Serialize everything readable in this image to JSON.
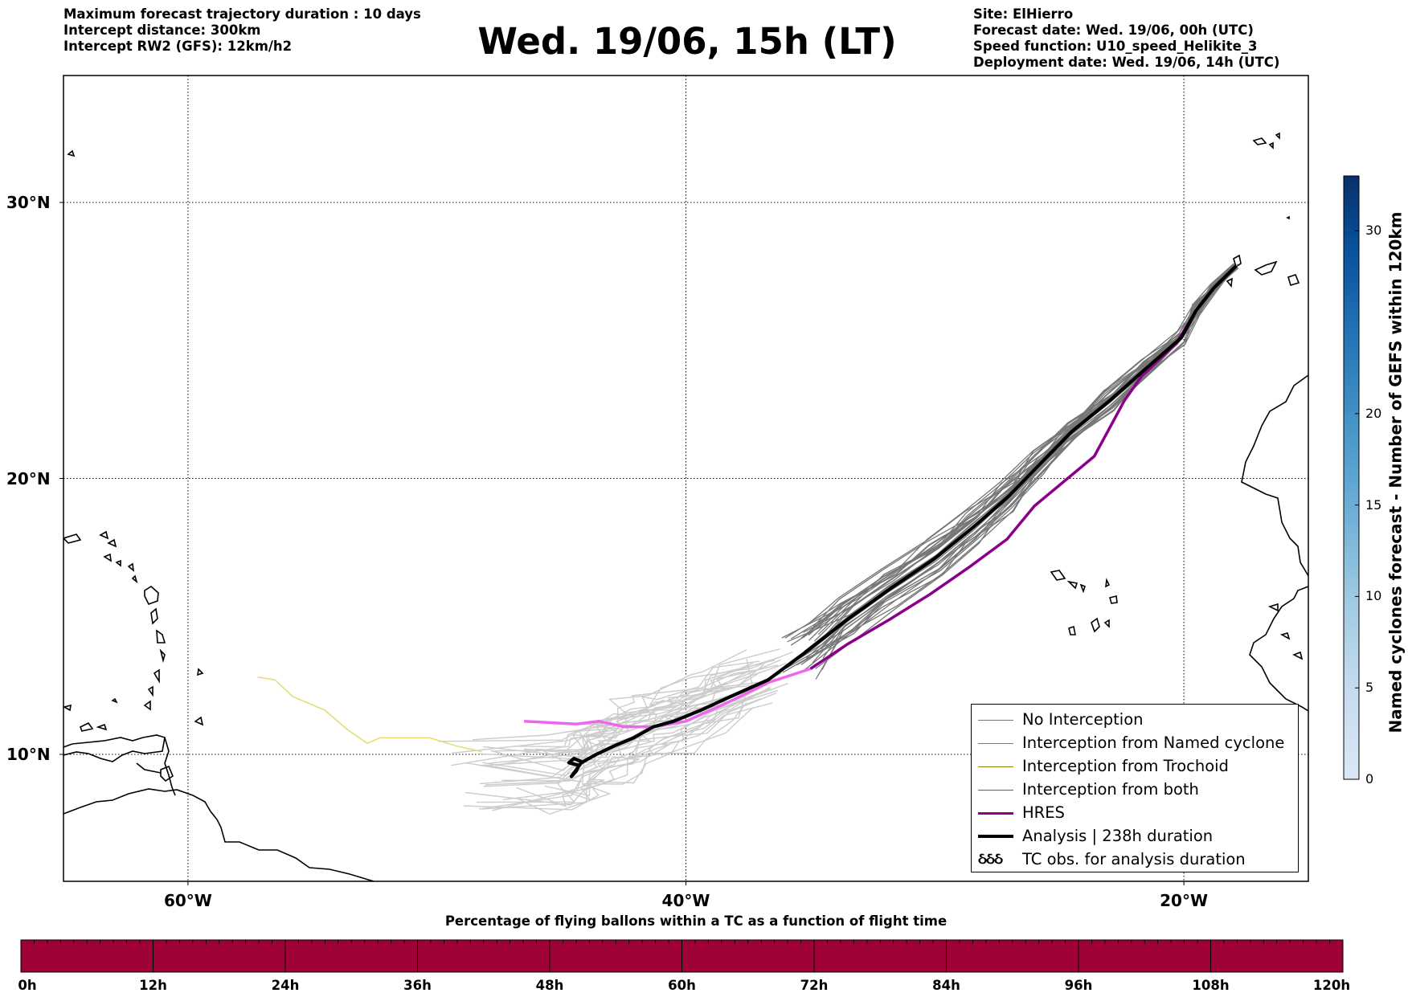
{
  "header": {
    "left_lines": [
      "Maximum forecast trajectory duration : 10 days",
      "Intercept distance: 300km",
      "Intercept RW2 (GFS):  12km/h2"
    ],
    "title": "Wed. 19/06, 15h (LT)",
    "right_lines": [
      "Site: ElHierro",
      "Forecast date: Wed. 19/06, 00h (UTC)",
      "Speed function: U10_speed_Helikite_3",
      "Deployment date: Wed. 19/06, 14h (UTC)"
    ]
  },
  "map": {
    "lon_range": [
      -65,
      -15
    ],
    "lat_range": [
      5.4,
      34.6
    ],
    "lon_ticks": [
      {
        "value": -60,
        "label": "60°W"
      },
      {
        "value": -40,
        "label": "40°W"
      },
      {
        "value": -20,
        "label": "20°W"
      }
    ],
    "lat_ticks": [
      {
        "value": 30,
        "label": "30°N"
      },
      {
        "value": 20,
        "label": "20°N"
      },
      {
        "value": 10,
        "label": "10°N"
      }
    ],
    "gridlines": "dotted",
    "colors": {
      "no_interception": "#777777",
      "named_cyclone": "#e8541f",
      "trochoid": "#808000",
      "both": "#228b22",
      "hres": "#8b008b",
      "analysis": "#000000",
      "late_ensemble": "#cccccc",
      "late_hres": "#ee66ee",
      "yellow_track": "#e3dc6e"
    },
    "analysis_track": [
      [
        -17.9,
        27.7
      ],
      [
        -18.8,
        26.9
      ],
      [
        -19.5,
        26.1
      ],
      [
        -20.1,
        25.1
      ],
      [
        -21.5,
        24.0
      ],
      [
        -23.0,
        22.8
      ],
      [
        -24.5,
        21.7
      ],
      [
        -25.8,
        20.5
      ],
      [
        -27.1,
        19.3
      ],
      [
        -28.5,
        18.2
      ],
      [
        -30.0,
        17.1
      ],
      [
        -31.8,
        16.0
      ],
      [
        -33.5,
        14.9
      ],
      [
        -35.2,
        13.7
      ],
      [
        -36.7,
        12.7
      ],
      [
        -38.2,
        12.1
      ],
      [
        -39.4,
        11.6
      ],
      [
        -40.5,
        11.2
      ],
      [
        -41.3,
        11.0
      ],
      [
        -42.1,
        10.6
      ],
      [
        -42.9,
        10.3
      ],
      [
        -43.6,
        10.0
      ],
      [
        -44.2,
        9.7
      ],
      [
        -44.6,
        9.2
      ],
      [
        -44.4,
        9.4
      ],
      [
        -44.3,
        9.6
      ],
      [
        -44.7,
        9.7
      ],
      [
        -44.5,
        9.85
      ],
      [
        -44.1,
        9.7
      ]
    ],
    "hres_track": [
      [
        -17.9,
        27.7
      ],
      [
        -18.8,
        26.9
      ],
      [
        -19.5,
        26.1
      ],
      [
        -20.3,
        24.9
      ],
      [
        -21.0,
        24.3
      ],
      [
        -21.7,
        23.7
      ],
      [
        -22.4,
        22.8
      ],
      [
        -23.0,
        21.8
      ],
      [
        -23.6,
        20.8
      ],
      [
        -24.8,
        19.9
      ],
      [
        -26.0,
        19.0
      ],
      [
        -27.1,
        17.8
      ],
      [
        -28.6,
        16.8
      ],
      [
        -30.2,
        15.8
      ],
      [
        -31.8,
        14.9
      ],
      [
        -33.5,
        14.0
      ],
      [
        -35.0,
        13.1
      ]
    ],
    "hres_late_track": [
      [
        -35.0,
        13.1
      ],
      [
        -36.7,
        12.6
      ],
      [
        -38.5,
        11.8
      ],
      [
        -40.0,
        11.2
      ],
      [
        -41.3,
        11.0
      ],
      [
        -42.5,
        11.0
      ],
      [
        -43.5,
        11.2
      ],
      [
        -44.4,
        11.1
      ],
      [
        -46.5,
        11.2
      ]
    ],
    "yellow_track": [
      [
        -57.2,
        12.8
      ],
      [
        -56.5,
        12.7
      ],
      [
        -55.8,
        12.1
      ],
      [
        -54.5,
        11.6
      ],
      [
        -53.6,
        10.9
      ],
      [
        -52.8,
        10.4
      ],
      [
        -52.3,
        10.6
      ],
      [
        -51.5,
        10.6
      ],
      [
        -50.3,
        10.6
      ],
      [
        -49.2,
        10.3
      ],
      [
        -48.2,
        10.1
      ]
    ]
  },
  "colorbar": {
    "label": "Named cyclones forecast - Number of GEFS within 120km",
    "min": 0,
    "max": 33,
    "ticks": [
      {
        "value": 0,
        "label": "0"
      },
      {
        "value": 5,
        "label": "5"
      },
      {
        "value": 10,
        "label": "10"
      },
      {
        "value": 15,
        "label": "15"
      },
      {
        "value": 20,
        "label": "20"
      },
      {
        "value": 30,
        "label": "30"
      }
    ],
    "colors": [
      "#dbe7f5",
      "#c6dbef",
      "#9ecae1",
      "#6baed6",
      "#4292c6",
      "#2171b5",
      "#08519c",
      "#08306b"
    ]
  },
  "legend": {
    "items": [
      {
        "label": "No Interception",
        "color": "#777777",
        "width": 1
      },
      {
        "label": "Interception from Named cyclone",
        "color": "#e8541f",
        "width": 1
      },
      {
        "label": "Interception from Trochoid",
        "color": "#808000",
        "width": 1
      },
      {
        "label": "Interception from both",
        "color": "#228b22",
        "width": 1
      },
      {
        "label": "HRES",
        "color": "#8b008b",
        "width": 3
      },
      {
        "label": "Analysis | 238h duration",
        "color": "#000000",
        "width": 4
      },
      {
        "label": "TC obs. for analysis duration",
        "symbol": "ઠઠઠ"
      }
    ]
  },
  "bottom_bar": {
    "title": "Percentage of flying ballons within a TC as a function of flight time",
    "color": "#9e0038",
    "ticks": [
      "0h",
      "12h",
      "24h",
      "36h",
      "48h",
      "60h",
      "72h",
      "84h",
      "96h",
      "108h",
      "120h"
    ]
  }
}
